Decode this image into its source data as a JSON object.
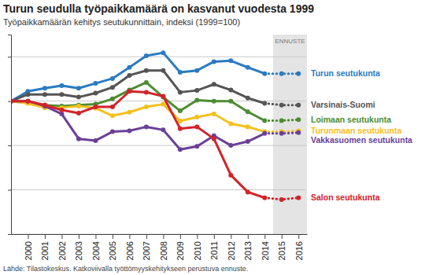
{
  "chart_data": {
    "type": "line",
    "title": "Turun seudulla työpaikkamäärä on kasvanut vuodesta 1999",
    "subtitle": "Työpaikkamäärän kehitys seutukunnittain, indeksi (1999=100)",
    "source": "Lähde: Tilastokeskus. Katkoviivalla työttömyyskehitykseen perustuva ennuste.",
    "x": [
      1999,
      2000,
      2001,
      2002,
      2003,
      2004,
      2005,
      2006,
      2007,
      2008,
      2009,
      2010,
      2011,
      2012,
      2013,
      2014,
      2015,
      2016
    ],
    "xlim": [
      1999,
      2016.5
    ],
    "xticks": [
      2000,
      2001,
      2002,
      2003,
      2004,
      2005,
      2006,
      2007,
      2008,
      2009,
      2010,
      2011,
      2012,
      2013,
      2014,
      2015,
      2016
    ],
    "ylim": [
      70,
      115
    ],
    "yticks": [
      70,
      80,
      90,
      100,
      110
    ],
    "grid": true,
    "tick_labels": "x",
    "marker": "circle",
    "forecast": {
      "label": "ENNUSTE",
      "from": 2014.5,
      "to": 2016.5,
      "line_style": "dotted"
    },
    "series": [
      {
        "name": "Turun seutukunta",
        "color": "#2b7bc2",
        "values": [
          100,
          102.2,
          102.9,
          103.5,
          102.9,
          104,
          105.1,
          107.6,
          110.2,
          110.9,
          106.5,
          106.9,
          108.9,
          109.1,
          107.6,
          106.2,
          106.2,
          106.2
        ]
      },
      {
        "name": "Varsinais-Suomi",
        "color": "#555555",
        "values": [
          100,
          101.5,
          101.5,
          101.5,
          100.9,
          101.8,
          103.1,
          105.8,
          106.9,
          106.9,
          102,
          102.4,
          103.8,
          102.5,
          100.7,
          99.5,
          99.1,
          99.1
        ]
      },
      {
        "name": "Loimaan seutukunta",
        "color": "#4c8c32",
        "values": [
          100,
          99.6,
          99.1,
          98.9,
          99.1,
          99.3,
          100.5,
          102.5,
          104.2,
          100.9,
          97.8,
          100.2,
          100,
          100,
          97.6,
          95.6,
          95.6,
          95.8
        ]
      },
      {
        "name": "Turunmaan seutukunta",
        "color": "#f4c01e",
        "values": [
          100,
          99.5,
          98.5,
          98.5,
          98.9,
          98.4,
          96.7,
          97.5,
          98.7,
          99.3,
          95.5,
          96.4,
          97.1,
          94.9,
          94.2,
          93.1,
          93.1,
          93.3
        ]
      },
      {
        "name": "Vakkasuomen seutukunta",
        "color": "#6b3f98",
        "values": [
          100,
          100,
          98.9,
          97.1,
          91.5,
          91.1,
          93.1,
          93.3,
          94.2,
          93.5,
          89.1,
          89.8,
          92.2,
          90,
          90.9,
          92.7,
          92.7,
          92.9
        ]
      },
      {
        "name": "Salon seutukunta",
        "color": "#d2232a",
        "values": [
          100,
          100,
          99.1,
          98,
          97.3,
          98.7,
          98.7,
          102.2,
          102,
          101.1,
          93.8,
          94.2,
          91.5,
          83.3,
          79.5,
          78.2,
          77.8,
          78.2
        ]
      }
    ]
  }
}
